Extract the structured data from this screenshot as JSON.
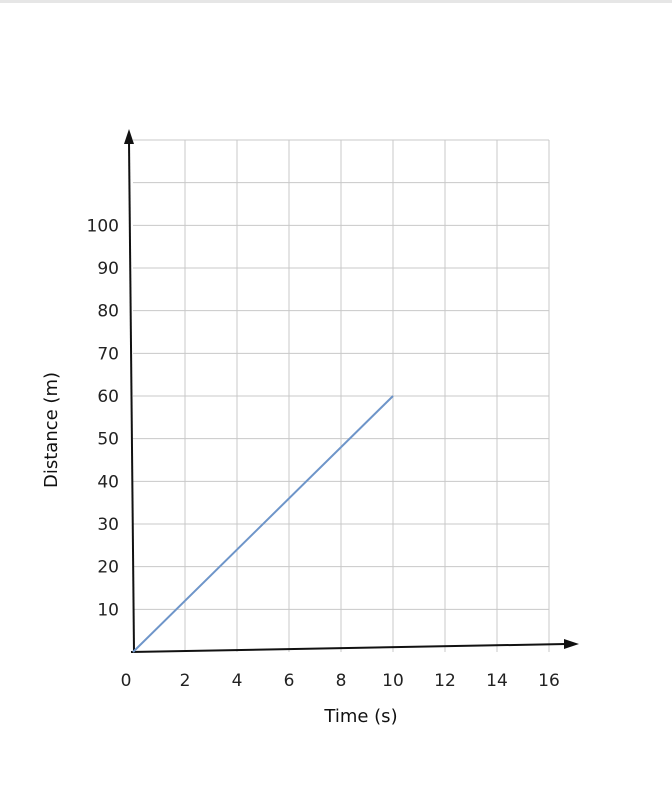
{
  "chart_data": {
    "type": "line",
    "xlabel": "Time (s)",
    "ylabel": "Distance (m)",
    "xlim": [
      0,
      16
    ],
    "ylim": [
      0,
      120
    ],
    "x_ticks": [
      0,
      2,
      4,
      6,
      8,
      10,
      12,
      14,
      16
    ],
    "x_tick_labels": [
      "0",
      "2",
      "4",
      "6",
      "8",
      "10",
      "12",
      "14",
      "16"
    ],
    "y_ticks": [
      10,
      20,
      30,
      40,
      50,
      60,
      70,
      80,
      90,
      100
    ],
    "y_tick_labels": [
      "10",
      "20",
      "30",
      "40",
      "50",
      "60",
      "70",
      "80",
      "90",
      "100"
    ],
    "grid": true,
    "series": [
      {
        "x": [
          0,
          10
        ],
        "y": [
          0,
          60
        ],
        "color": "#6e95c9"
      }
    ]
  }
}
